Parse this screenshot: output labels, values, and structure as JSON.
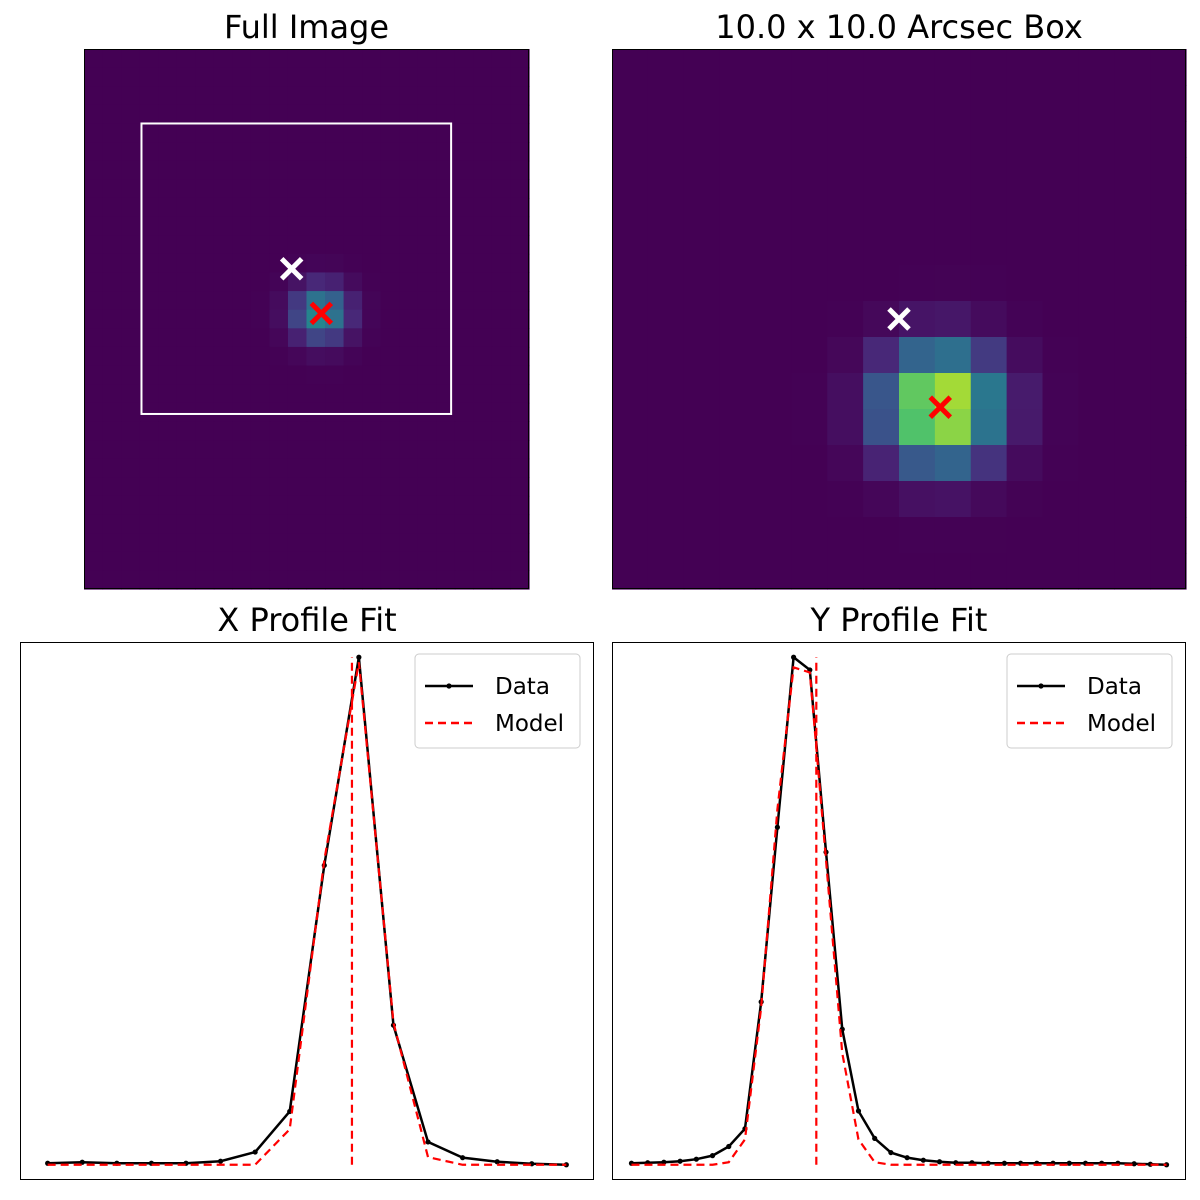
{
  "chart_data": [
    {
      "type": "heatmap",
      "title": "Full Image",
      "grid": false,
      "axes_ticks": false,
      "colormap": "viridis",
      "pixel_grid": {
        "cols": 24,
        "rows": 29
      },
      "source_center": {
        "col": 12.8,
        "row": 14.2,
        "sigma_pixels": 1.0,
        "peak": 0.5
      },
      "markers": [
        {
          "name": "guess",
          "symbol": "x",
          "color": "#ffffff",
          "col": 11.2,
          "row": 11.8
        },
        {
          "name": "fit",
          "symbol": "x",
          "color": "#ff0000",
          "col": 12.8,
          "row": 14.2
        }
      ],
      "subbox": {
        "col_from": 3.1,
        "col_to": 19.8,
        "row_from": 4.0,
        "row_to": 19.6,
        "color": "#ffffff"
      }
    },
    {
      "type": "heatmap",
      "title": "10.0 x 10.0 Arcsec Box",
      "grid": false,
      "axes_ticks": false,
      "colormap": "viridis",
      "pixel_grid": {
        "cols": 16,
        "rows": 15
      },
      "source_center": {
        "col": 9.15,
        "row": 9.95,
        "sigma_pixels": 1.05,
        "peak": 1.0
      },
      "markers": [
        {
          "name": "guess",
          "symbol": "x",
          "color": "#ffffff",
          "col": 8.0,
          "row": 7.5
        },
        {
          "name": "fit",
          "symbol": "x",
          "color": "#ff0000",
          "col": 9.15,
          "row": 9.95
        }
      ]
    },
    {
      "type": "line",
      "title": "X Profile Fit",
      "grid": false,
      "axes_ticks": false,
      "legend": "top-right",
      "xlim": [
        -0.8,
        15.8
      ],
      "ylim": [
        -0.03,
        1.03
      ],
      "series": [
        {
          "name": "Data",
          "color": "#000000",
          "style": "solid-dots",
          "x": [
            0,
            1,
            2,
            3,
            4,
            5,
            6,
            7,
            8,
            9,
            10,
            11,
            12,
            13,
            14,
            15
          ],
          "y": [
            0.003,
            0.005,
            0.003,
            0.003,
            0.003,
            0.007,
            0.025,
            0.105,
            0.59,
            1.0,
            0.275,
            0.045,
            0.014,
            0.006,
            0.002,
            0.0
          ]
        },
        {
          "name": "Model",
          "color": "#ff0000",
          "style": "dashed",
          "x": [
            0,
            1,
            2,
            3,
            4,
            5,
            6,
            7,
            8,
            9,
            10,
            11,
            12,
            13,
            14,
            15
          ],
          "y": [
            0.0,
            0.0,
            0.0,
            0.0,
            0.0,
            0.0,
            0.0,
            0.07,
            0.6,
            0.99,
            0.28,
            0.015,
            0.0,
            0.0,
            0.0,
            0.0
          ]
        },
        {
          "name": "model-center",
          "color": "#ff0000",
          "style": "dashed-vertical",
          "x": [
            8.8,
            8.8
          ],
          "y": [
            0.0,
            1.0
          ]
        }
      ],
      "legend_labels": [
        "Data",
        "Model"
      ]
    },
    {
      "type": "line",
      "title": "Y Profile Fit",
      "grid": false,
      "axes_ticks": false,
      "legend": "top-right",
      "xlim": [
        -1.2,
        34.2
      ],
      "ylim": [
        -0.03,
        1.03
      ],
      "series": [
        {
          "name": "Data",
          "color": "#000000",
          "style": "solid-dots",
          "x": [
            0,
            1,
            2,
            3,
            4,
            5,
            6,
            7,
            8,
            9,
            10,
            11,
            12,
            13,
            14,
            15,
            16,
            17,
            18,
            19,
            20,
            21,
            22,
            23,
            24,
            25,
            26,
            27,
            28,
            29,
            30,
            31,
            32,
            33
          ],
          "y": [
            0.003,
            0.004,
            0.005,
            0.007,
            0.011,
            0.018,
            0.036,
            0.071,
            0.321,
            0.665,
            1.0,
            0.975,
            0.616,
            0.267,
            0.106,
            0.052,
            0.024,
            0.014,
            0.009,
            0.006,
            0.004,
            0.004,
            0.003,
            0.003,
            0.003,
            0.003,
            0.003,
            0.003,
            0.003,
            0.003,
            0.003,
            0.002,
            0.001,
            0.0
          ]
        },
        {
          "name": "Model",
          "color": "#ff0000",
          "style": "dashed",
          "x": [
            0,
            1,
            2,
            3,
            4,
            5,
            6,
            7,
            8,
            9,
            10,
            11,
            12,
            13,
            14,
            15,
            16,
            17,
            18,
            19,
            20,
            21,
            22,
            23,
            24,
            25,
            26,
            27,
            28,
            29,
            30,
            31,
            32,
            33
          ],
          "y": [
            0.0,
            0.0,
            0.0,
            0.0,
            0.0,
            0.0,
            0.005,
            0.05,
            0.31,
            0.7,
            0.98,
            0.97,
            0.6,
            0.22,
            0.05,
            0.005,
            0.0,
            0.0,
            0.0,
            0.0,
            0.0,
            0.0,
            0.0,
            0.0,
            0.0,
            0.0,
            0.0,
            0.0,
            0.0,
            0.0,
            0.0,
            0.0,
            0.0,
            0.0
          ]
        },
        {
          "name": "model-center",
          "color": "#ff0000",
          "style": "dashed-vertical",
          "x": [
            11.4,
            11.4
          ],
          "y": [
            0.0,
            1.0
          ]
        }
      ],
      "legend_labels": [
        "Data",
        "Model"
      ]
    }
  ]
}
